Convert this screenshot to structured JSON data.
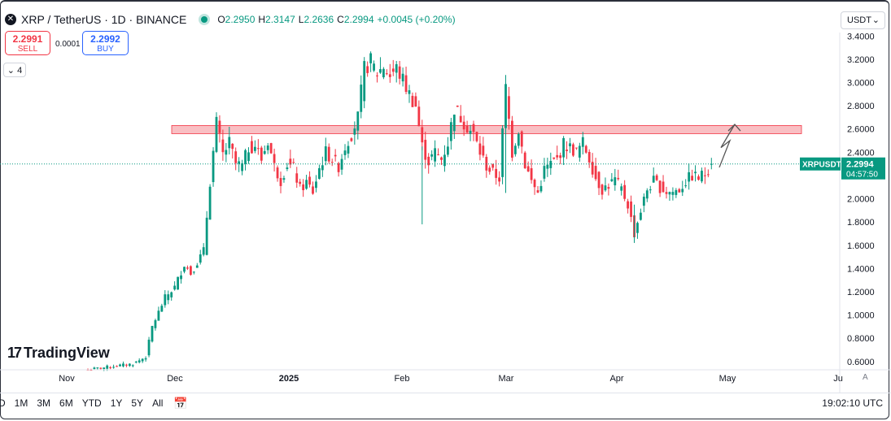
{
  "header": {
    "symbol_title": "XRP / TetherUS · 1D · BINANCE",
    "open_label": "O",
    "open": "2.2950",
    "high_label": "H",
    "high": "2.3147",
    "low_label": "L",
    "low": "2.2636",
    "close_label": "C",
    "close": "2.2994",
    "change": "+0.0045 (+0.20%)"
  },
  "trade": {
    "sell_price": "2.2991",
    "sell_label": "SELL",
    "spread": "0.0001",
    "buy_price": "2.2992",
    "buy_label": "BUY"
  },
  "indicators_toggle": "4",
  "currency": "USDT",
  "watermark": "TradingView",
  "bottom": {
    "ranges": [
      "D",
      "1M",
      "3M",
      "6M",
      "YTD",
      "1Y",
      "5Y",
      "All"
    ],
    "time": "19:02:10 UTC",
    "auto_label": "A"
  },
  "colors": {
    "up": "#089981",
    "down": "#f23645",
    "zone": "#f7a8ad"
  },
  "chart_data": {
    "type": "candlestick",
    "symbol": "XRPUSDT",
    "current_price": "2.2994",
    "countdown": "04:57:50",
    "resistance_zone": [
      2.56,
      2.63
    ],
    "projection": [
      2.27,
      2.5,
      2.44,
      2.64
    ],
    "ylim": [
      0.55,
      3.43
    ],
    "y_ticks": [
      "0.6000",
      "0.8000",
      "1.0000",
      "1.2000",
      "1.4000",
      "1.6000",
      "1.8000",
      "2.0000",
      "2.2000",
      "2.4000",
      "2.6000",
      "2.8000",
      "3.0000",
      "3.2000",
      "3.4000"
    ],
    "x_ticks": [
      "Nov",
      "Dec",
      "2025",
      "Feb",
      "Mar",
      "Apr",
      "May",
      "Ju"
    ],
    "anchors": [
      [
        0,
        0.53
      ],
      [
        8,
        0.56
      ],
      [
        14,
        0.58
      ],
      [
        18,
        0.64
      ],
      [
        20,
        0.9
      ],
      [
        24,
        1.15
      ],
      [
        27,
        1.24
      ],
      [
        30,
        1.44
      ],
      [
        32,
        1.36
      ],
      [
        36,
        1.55
      ],
      [
        38,
        2.15
      ],
      [
        40,
        2.65
      ],
      [
        42,
        2.38
      ],
      [
        44,
        2.48
      ],
      [
        46,
        2.3
      ],
      [
        48,
        2.28
      ],
      [
        50,
        2.44
      ],
      [
        52,
        2.46
      ],
      [
        54,
        2.34
      ],
      [
        56,
        2.5
      ],
      [
        58,
        2.28
      ],
      [
        60,
        2.16
      ],
      [
        62,
        2.3
      ],
      [
        64,
        2.26
      ],
      [
        66,
        2.08
      ],
      [
        68,
        2.14
      ],
      [
        70,
        2.06
      ],
      [
        72,
        2.26
      ],
      [
        74,
        2.4
      ],
      [
        76,
        2.34
      ],
      [
        78,
        2.28
      ],
      [
        80,
        2.45
      ],
      [
        82,
        2.56
      ],
      [
        84,
        2.7
      ],
      [
        86,
        3.12
      ],
      [
        88,
        3.18
      ],
      [
        90,
        3.08
      ],
      [
        92,
        3.14
      ],
      [
        94,
        3.06
      ],
      [
        96,
        3.12
      ],
      [
        98,
        3.02
      ],
      [
        100,
        2.9
      ],
      [
        102,
        2.8
      ],
      [
        104,
        2.45
      ],
      [
        106,
        2.32
      ],
      [
        108,
        2.4
      ],
      [
        110,
        2.34
      ],
      [
        112,
        2.48
      ],
      [
        114,
        2.78
      ],
      [
        116,
        2.7
      ],
      [
        118,
        2.62
      ],
      [
        120,
        2.55
      ],
      [
        122,
        2.4
      ],
      [
        124,
        2.28
      ],
      [
        126,
        2.22
      ],
      [
        128,
        2.18
      ],
      [
        130,
        2.95
      ],
      [
        132,
        2.4
      ],
      [
        134,
        2.6
      ],
      [
        136,
        2.3
      ],
      [
        138,
        2.15
      ],
      [
        140,
        2.05
      ],
      [
        142,
        2.25
      ],
      [
        144,
        2.3
      ],
      [
        146,
        2.34
      ],
      [
        148,
        2.47
      ],
      [
        150,
        2.44
      ],
      [
        152,
        2.4
      ],
      [
        154,
        2.48
      ],
      [
        156,
        2.35
      ],
      [
        158,
        2.18
      ],
      [
        160,
        2.08
      ],
      [
        162,
        2.12
      ],
      [
        164,
        2.16
      ],
      [
        166,
        2.08
      ],
      [
        168,
        1.95
      ],
      [
        170,
        1.7
      ],
      [
        172,
        1.9
      ],
      [
        174,
        2.08
      ],
      [
        176,
        2.15
      ],
      [
        178,
        2.1
      ],
      [
        180,
        2.06
      ],
      [
        182,
        2.06
      ],
      [
        184,
        2.08
      ],
      [
        186,
        2.15
      ],
      [
        188,
        2.2
      ],
      [
        190,
        2.18
      ],
      [
        192,
        2.22
      ],
      [
        194,
        2.3
      ]
    ]
  }
}
